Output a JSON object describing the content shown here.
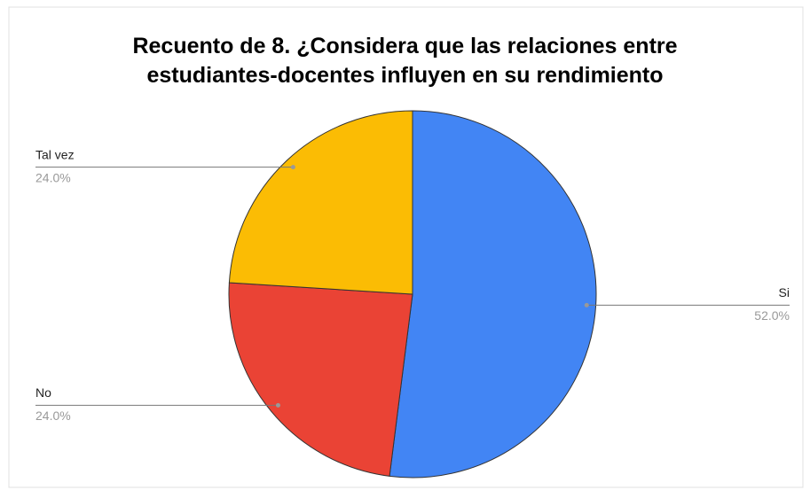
{
  "chart_data": {
    "type": "pie",
    "title": "Recuento de 8. ¿Considera que las relaciones entre estudiantes-docentes influyen en su rendimiento",
    "categories": [
      "Si",
      "No",
      "Tal vez"
    ],
    "values": [
      52,
      24,
      24
    ],
    "value_labels": [
      "52.0%",
      "24.0%",
      "24.0%"
    ],
    "colors": [
      "#4285f4",
      "#ea4335",
      "#fbbc04"
    ]
  }
}
